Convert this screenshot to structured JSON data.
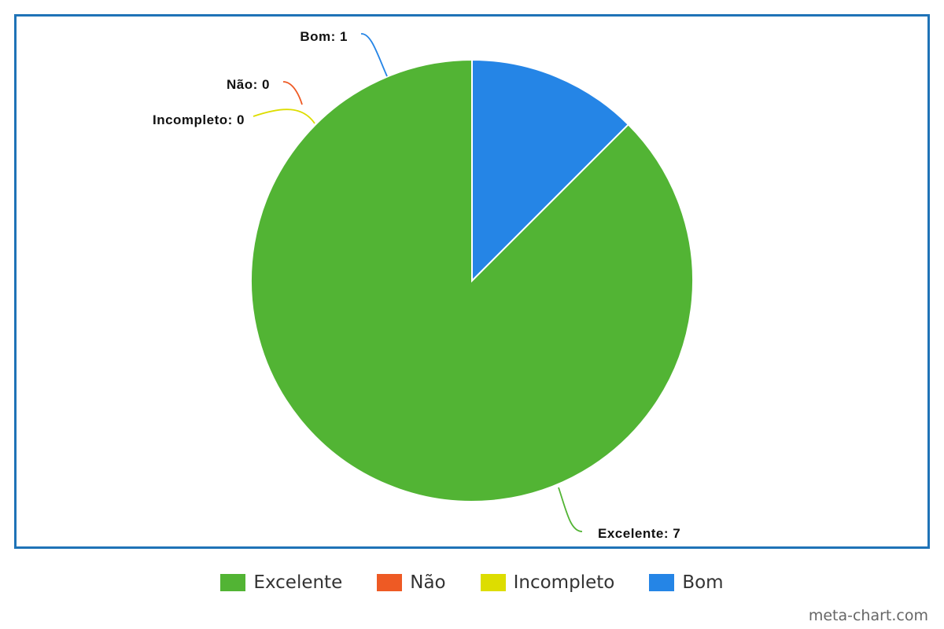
{
  "chart_data": {
    "type": "pie",
    "title": "",
    "categories": [
      "Excelente",
      "Não",
      "Incompleto",
      "Bom"
    ],
    "values": [
      7,
      0,
      0,
      1
    ],
    "colors": [
      "#52b434",
      "#ee5a24",
      "#dddd00",
      "#2585e6"
    ],
    "labels": [
      "Excelente: 7",
      "Não: 0",
      "Incompleto: 0",
      "Bom: 1"
    ],
    "legend_position": "bottom"
  },
  "legend": {
    "items": [
      {
        "label": "Excelente",
        "color": "#52b434"
      },
      {
        "label": "Não",
        "color": "#ee5a24"
      },
      {
        "label": "Incompleto",
        "color": "#dddd00"
      },
      {
        "label": "Bom",
        "color": "#2585e6"
      }
    ]
  },
  "watermark": "meta-chart.com",
  "frame_color": "#1f73b7"
}
